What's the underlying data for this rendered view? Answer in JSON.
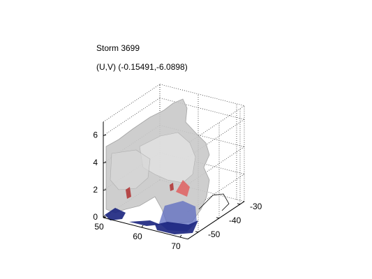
{
  "chart_data": {
    "type": "isosurface3d",
    "title": "Storm 3699",
    "subtitle": "(U,V) (-0.15491,-6.0898)",
    "xlim": [
      50,
      72
    ],
    "ylim": [
      -55,
      -28
    ],
    "zlim": [
      0,
      7
    ],
    "xticks": [
      50,
      60,
      70
    ],
    "yticks": [
      -50,
      -40,
      -30
    ],
    "zticks": [
      0,
      2,
      4,
      6
    ],
    "grid": true
  }
}
